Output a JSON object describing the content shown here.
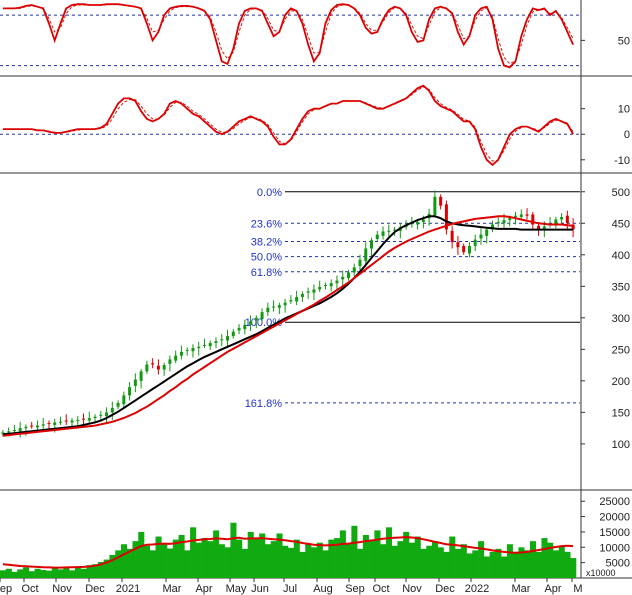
{
  "chart_data": [
    {
      "type": "line",
      "panel": "oscillator-1",
      "y_ticks": [
        "50"
      ],
      "reference_levels": [
        80,
        20
      ],
      "ylim": [
        10,
        98
      ],
      "series": [
        {
          "color": "#dd0000",
          "style": "solid",
          "values": [
            88,
            88,
            88,
            89,
            91,
            92,
            90,
            88,
            70,
            50,
            70,
            88,
            92,
            93,
            93,
            92,
            92,
            92,
            93,
            93,
            93,
            92,
            91,
            90,
            88,
            70,
            50,
            60,
            80,
            88,
            90,
            91,
            91,
            90,
            88,
            85,
            75,
            50,
            25,
            22,
            40,
            70,
            85,
            88,
            88,
            85,
            70,
            55,
            60,
            80,
            88,
            85,
            70,
            45,
            25,
            35,
            70,
            86,
            92,
            93,
            92,
            88,
            80,
            65,
            58,
            60,
            75,
            86,
            90,
            88,
            80,
            60,
            48,
            50,
            75,
            88,
            90,
            88,
            82,
            60,
            45,
            55,
            80,
            88,
            90,
            75,
            40,
            20,
            18,
            25,
            55,
            75,
            88,
            86,
            88,
            80,
            85,
            75,
            60,
            45
          ]
        },
        {
          "color": "#dd0000",
          "style": "dashed",
          "values": [
            88,
            88,
            88,
            88,
            90,
            91,
            90,
            88,
            76,
            60,
            65,
            82,
            90,
            92,
            92,
            92,
            92,
            92,
            92,
            93,
            93,
            92,
            91,
            90,
            88,
            76,
            60,
            62,
            75,
            85,
            89,
            90,
            90,
            90,
            88,
            85,
            78,
            60,
            38,
            28,
            36,
            60,
            80,
            87,
            88,
            86,
            76,
            62,
            60,
            75,
            85,
            85,
            75,
            55,
            35,
            36,
            60,
            82,
            90,
            92,
            92,
            89,
            82,
            70,
            62,
            62,
            72,
            83,
            89,
            88,
            82,
            68,
            55,
            52,
            68,
            84,
            89,
            88,
            83,
            68,
            52,
            55,
            74,
            85,
            89,
            78,
            52,
            30,
            22,
            26,
            45,
            68,
            84,
            86,
            87,
            82,
            84,
            77,
            65,
            52
          ]
        }
      ]
    },
    {
      "type": "line",
      "panel": "oscillator-2",
      "y_ticks": [
        "10",
        "0",
        "-10"
      ],
      "reference_levels": [
        0
      ],
      "ylim": [
        -14,
        22
      ],
      "series": [
        {
          "color": "#dd0000",
          "style": "solid",
          "values": [
            2,
            2,
            2,
            2,
            2,
            2,
            1.5,
            1.5,
            1,
            0.5,
            0.5,
            1,
            1.5,
            2,
            2,
            2,
            2,
            2.5,
            4,
            8,
            12,
            14,
            14,
            13,
            9,
            6,
            5,
            6,
            8,
            12,
            13,
            12,
            10,
            8,
            7,
            5,
            3,
            1,
            0,
            1,
            3,
            5,
            6,
            7,
            6,
            5,
            3,
            -1,
            -4,
            -4,
            -2,
            2,
            6,
            9,
            10,
            10,
            11,
            12,
            12,
            13,
            13,
            13,
            13,
            12,
            11,
            10,
            10,
            11,
            12,
            13,
            14,
            16,
            18,
            19,
            17,
            13,
            11,
            10,
            9,
            7,
            5,
            5,
            2,
            -5,
            -10,
            -12,
            -10,
            -5,
            0,
            2,
            3,
            3,
            2,
            1,
            3,
            5,
            6,
            5,
            4,
            0
          ]
        },
        {
          "color": "#dd0000",
          "style": "dashed",
          "values": [
            2,
            2,
            2,
            2,
            2,
            2,
            1.8,
            1.6,
            1.2,
            0.8,
            0.6,
            0.8,
            1.2,
            1.6,
            1.8,
            2,
            2,
            2.2,
            3.2,
            6,
            10,
            12.5,
            13.5,
            13.5,
            11,
            8,
            6,
            6,
            7.5,
            10.5,
            12.5,
            12.5,
            11,
            9,
            7.8,
            6,
            4,
            2,
            0.8,
            0.8,
            2.2,
            4,
            5.5,
            6.5,
            6.3,
            5.5,
            3.8,
            0.5,
            -2.8,
            -3.8,
            -2.5,
            1,
            4.8,
            8,
            9.6,
            10,
            10.8,
            11.8,
            12,
            12.8,
            13,
            13,
            13,
            12.3,
            11.3,
            10.5,
            10.2,
            10.8,
            11.8,
            12.8,
            13.8,
            15.5,
            17.3,
            18.5,
            17.5,
            14.3,
            12,
            10.5,
            9.5,
            7.8,
            5.8,
            5.2,
            2.8,
            -3,
            -7.8,
            -10.5,
            -10.2,
            -6.5,
            -1.8,
            1.2,
            2.6,
            3,
            2.3,
            1.5,
            2.5,
            4.3,
            5.5,
            5.2,
            4.3,
            1
          ]
        }
      ]
    },
    {
      "type": "candlestick",
      "panel": "price",
      "y_ticks": [
        "500",
        "450",
        "400",
        "350",
        "300",
        "250",
        "200",
        "150",
        "100"
      ],
      "ylim": [
        30,
        525
      ],
      "fibonacci": [
        {
          "label": "0.0%",
          "value": 500
        },
        {
          "label": "23.6%",
          "value": 450
        },
        {
          "label": "38.2%",
          "value": 421
        },
        {
          "label": "50.0%",
          "value": 397
        },
        {
          "label": "61.8%",
          "value": 373
        },
        {
          "label": "100.0%",
          "value": 293
        },
        {
          "label": "161.8%",
          "value": 165
        }
      ],
      "close": [
        118,
        120,
        122,
        125,
        127,
        128,
        129,
        131,
        132,
        134,
        135,
        136,
        137,
        138,
        139,
        141,
        143,
        146,
        150,
        157,
        165,
        177,
        190,
        202,
        215,
        226,
        226,
        218,
        225,
        234,
        240,
        246,
        249,
        252,
        254,
        257,
        260,
        263,
        266,
        271,
        278,
        284,
        289,
        294,
        300,
        309,
        316,
        318,
        320,
        324,
        328,
        333,
        338,
        342,
        345,
        349,
        352,
        355,
        359,
        365,
        372,
        380,
        392,
        410,
        423,
        432,
        437,
        438,
        440,
        444,
        447,
        450,
        452,
        456,
        465,
        492,
        478,
        440,
        420,
        412,
        404,
        414,
        424,
        432,
        440,
        448,
        452,
        455,
        458,
        462,
        464,
        462,
        448,
        440,
        445,
        450,
        456,
        460,
        450,
        440
      ],
      "moving_averages": [
        {
          "color": "#000000",
          "values": [
            115,
            116,
            117,
            118,
            119,
            120,
            121,
            122,
            123,
            124,
            125,
            126,
            127,
            128,
            130,
            132,
            134,
            137,
            141,
            146,
            151,
            157,
            163,
            169,
            175,
            181,
            187,
            193,
            199,
            205,
            211,
            217,
            223,
            228,
            233,
            238,
            242,
            246,
            250,
            254,
            258,
            262,
            266,
            270,
            274,
            279,
            284,
            289,
            294,
            299,
            303,
            307,
            311,
            315,
            319,
            323,
            328,
            333,
            339,
            346,
            354,
            363,
            373,
            384,
            395,
            406,
            417,
            427,
            436,
            442,
            447,
            451,
            455,
            458,
            461,
            461,
            458,
            453,
            450,
            448,
            447,
            446,
            445,
            444,
            443,
            442,
            441,
            441,
            441,
            441,
            440,
            440,
            440,
            440,
            440,
            440,
            440,
            440,
            440,
            440
          ]
        },
        {
          "color": "#dd0000",
          "values": [
            113,
            114,
            115,
            116,
            117,
            118,
            119,
            120,
            121,
            122,
            123,
            124,
            125,
            126,
            127,
            128,
            129,
            131,
            133,
            135,
            138,
            141,
            145,
            149,
            154,
            159,
            165,
            171,
            177,
            184,
            190,
            197,
            203,
            210,
            216,
            222,
            228,
            234,
            240,
            246,
            251,
            256,
            261,
            266,
            271,
            276,
            281,
            286,
            291,
            296,
            301,
            306,
            311,
            316,
            321,
            327,
            332,
            338,
            344,
            350,
            356,
            363,
            370,
            377,
            384,
            391,
            398,
            405,
            411,
            416,
            421,
            425,
            429,
            433,
            437,
            440,
            443,
            446,
            449,
            451,
            453,
            455,
            457,
            458,
            459,
            460,
            461,
            461,
            460,
            458,
            456,
            454,
            452,
            450,
            449,
            448,
            448,
            448,
            447,
            446
          ]
        }
      ]
    },
    {
      "type": "bar",
      "panel": "volume",
      "y_ticks": [
        "25000",
        "20000",
        "15000",
        "10000",
        "5000"
      ],
      "unit_label": "x10000",
      "ylim": [
        0,
        28000
      ],
      "values": [
        2500,
        3000,
        2000,
        2800,
        3500,
        2200,
        3000,
        2600,
        2400,
        3100,
        2800,
        3300,
        2500,
        3600,
        3000,
        4200,
        4500,
        5200,
        6000,
        7500,
        9000,
        11000,
        9500,
        12000,
        15000,
        10500,
        9000,
        13500,
        11000,
        9600,
        12500,
        14000,
        9000,
        16500,
        11500,
        13000,
        12000,
        15500,
        11000,
        10000,
        18000,
        12500,
        9500,
        15000,
        13000,
        14500,
        11000,
        12000,
        14500,
        10500,
        9800,
        12500,
        8500,
        11000,
        10000,
        11500,
        9000,
        12500,
        13000,
        15500,
        11000,
        17000,
        9500,
        14000,
        12500,
        15500,
        11000,
        16500,
        10500,
        12000,
        15000,
        11500,
        13500,
        9500,
        10500,
        12000,
        10000,
        8500,
        13500,
        9500,
        11000,
        8000,
        9000,
        12000,
        7000,
        8500,
        9500,
        7000,
        11000,
        8500,
        10000,
        9000,
        12000,
        8500,
        13000,
        11500,
        9000,
        10500,
        8500,
        6500
      ],
      "average": [
        4500,
        4300,
        4100,
        3900,
        3800,
        3700,
        3600,
        3500,
        3450,
        3400,
        3400,
        3450,
        3500,
        3550,
        3600,
        3750,
        4000,
        4400,
        5000,
        5800,
        6700,
        7700,
        8600,
        9500,
        10400,
        10800,
        10900,
        11100,
        11200,
        11100,
        11300,
        11700,
        11900,
        12200,
        12400,
        12600,
        12700,
        12900,
        12800,
        12600,
        13000,
        13100,
        12800,
        12900,
        12900,
        13000,
        12800,
        12600,
        12500,
        12300,
        12000,
        11800,
        11400,
        11100,
        10800,
        10700,
        10600,
        10700,
        10800,
        11100,
        11200,
        11500,
        11700,
        12000,
        12200,
        12500,
        12800,
        13000,
        13100,
        13200,
        13300,
        13200,
        13000,
        12600,
        12200,
        11800,
        11400,
        11000,
        10800,
        10600,
        10400,
        10100,
        9800,
        9600,
        9300,
        9000,
        8700,
        8500,
        8300,
        8200,
        8300,
        8500,
        8800,
        9100,
        9400,
        9800,
        10100,
        10400,
        10500,
        10400
      ],
      "x_tick_labels": [
        "ep",
        "Oct",
        "Nov",
        "Dec",
        "2021",
        "Mar",
        "Apr",
        "May",
        "Jun",
        "Jul",
        "Aug",
        "Sep",
        "Oct",
        "Nov",
        "Dec",
        "2022",
        "Mar",
        "Apr",
        "M"
      ]
    }
  ]
}
